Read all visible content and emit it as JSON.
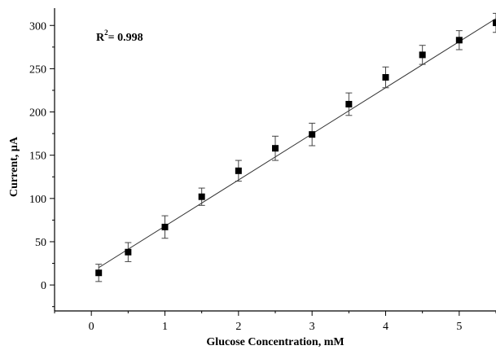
{
  "chart_data": {
    "type": "scatter",
    "xlabel": "Glucose Concentration, mM",
    "ylabel": "Current, µA",
    "annotation": {
      "prefix": "R",
      "sup": "2",
      "suffix": "= 0.998"
    },
    "xlim": [
      -0.5,
      5.5
    ],
    "ylim": [
      -30,
      320
    ],
    "xticks": [
      0,
      1,
      2,
      3,
      4,
      5
    ],
    "yticks": [
      0,
      50,
      100,
      150,
      200,
      250,
      300
    ],
    "grid": false,
    "legend": "none",
    "series": [
      {
        "marker": "square",
        "x": [
          0.1,
          0.5,
          1.0,
          1.5,
          2.0,
          2.5,
          3.0,
          3.5,
          4.0,
          4.5,
          5.0,
          5.5
        ],
        "y": [
          14,
          38,
          67,
          102,
          132,
          158,
          174,
          209,
          240,
          266,
          283,
          303
        ],
        "err": [
          10,
          11,
          13,
          10,
          12,
          14,
          13,
          13,
          12,
          11,
          11,
          11
        ]
      }
    ],
    "fit_line": {
      "x": [
        0.1,
        5.5
      ],
      "y": [
        20,
        308
      ]
    }
  }
}
